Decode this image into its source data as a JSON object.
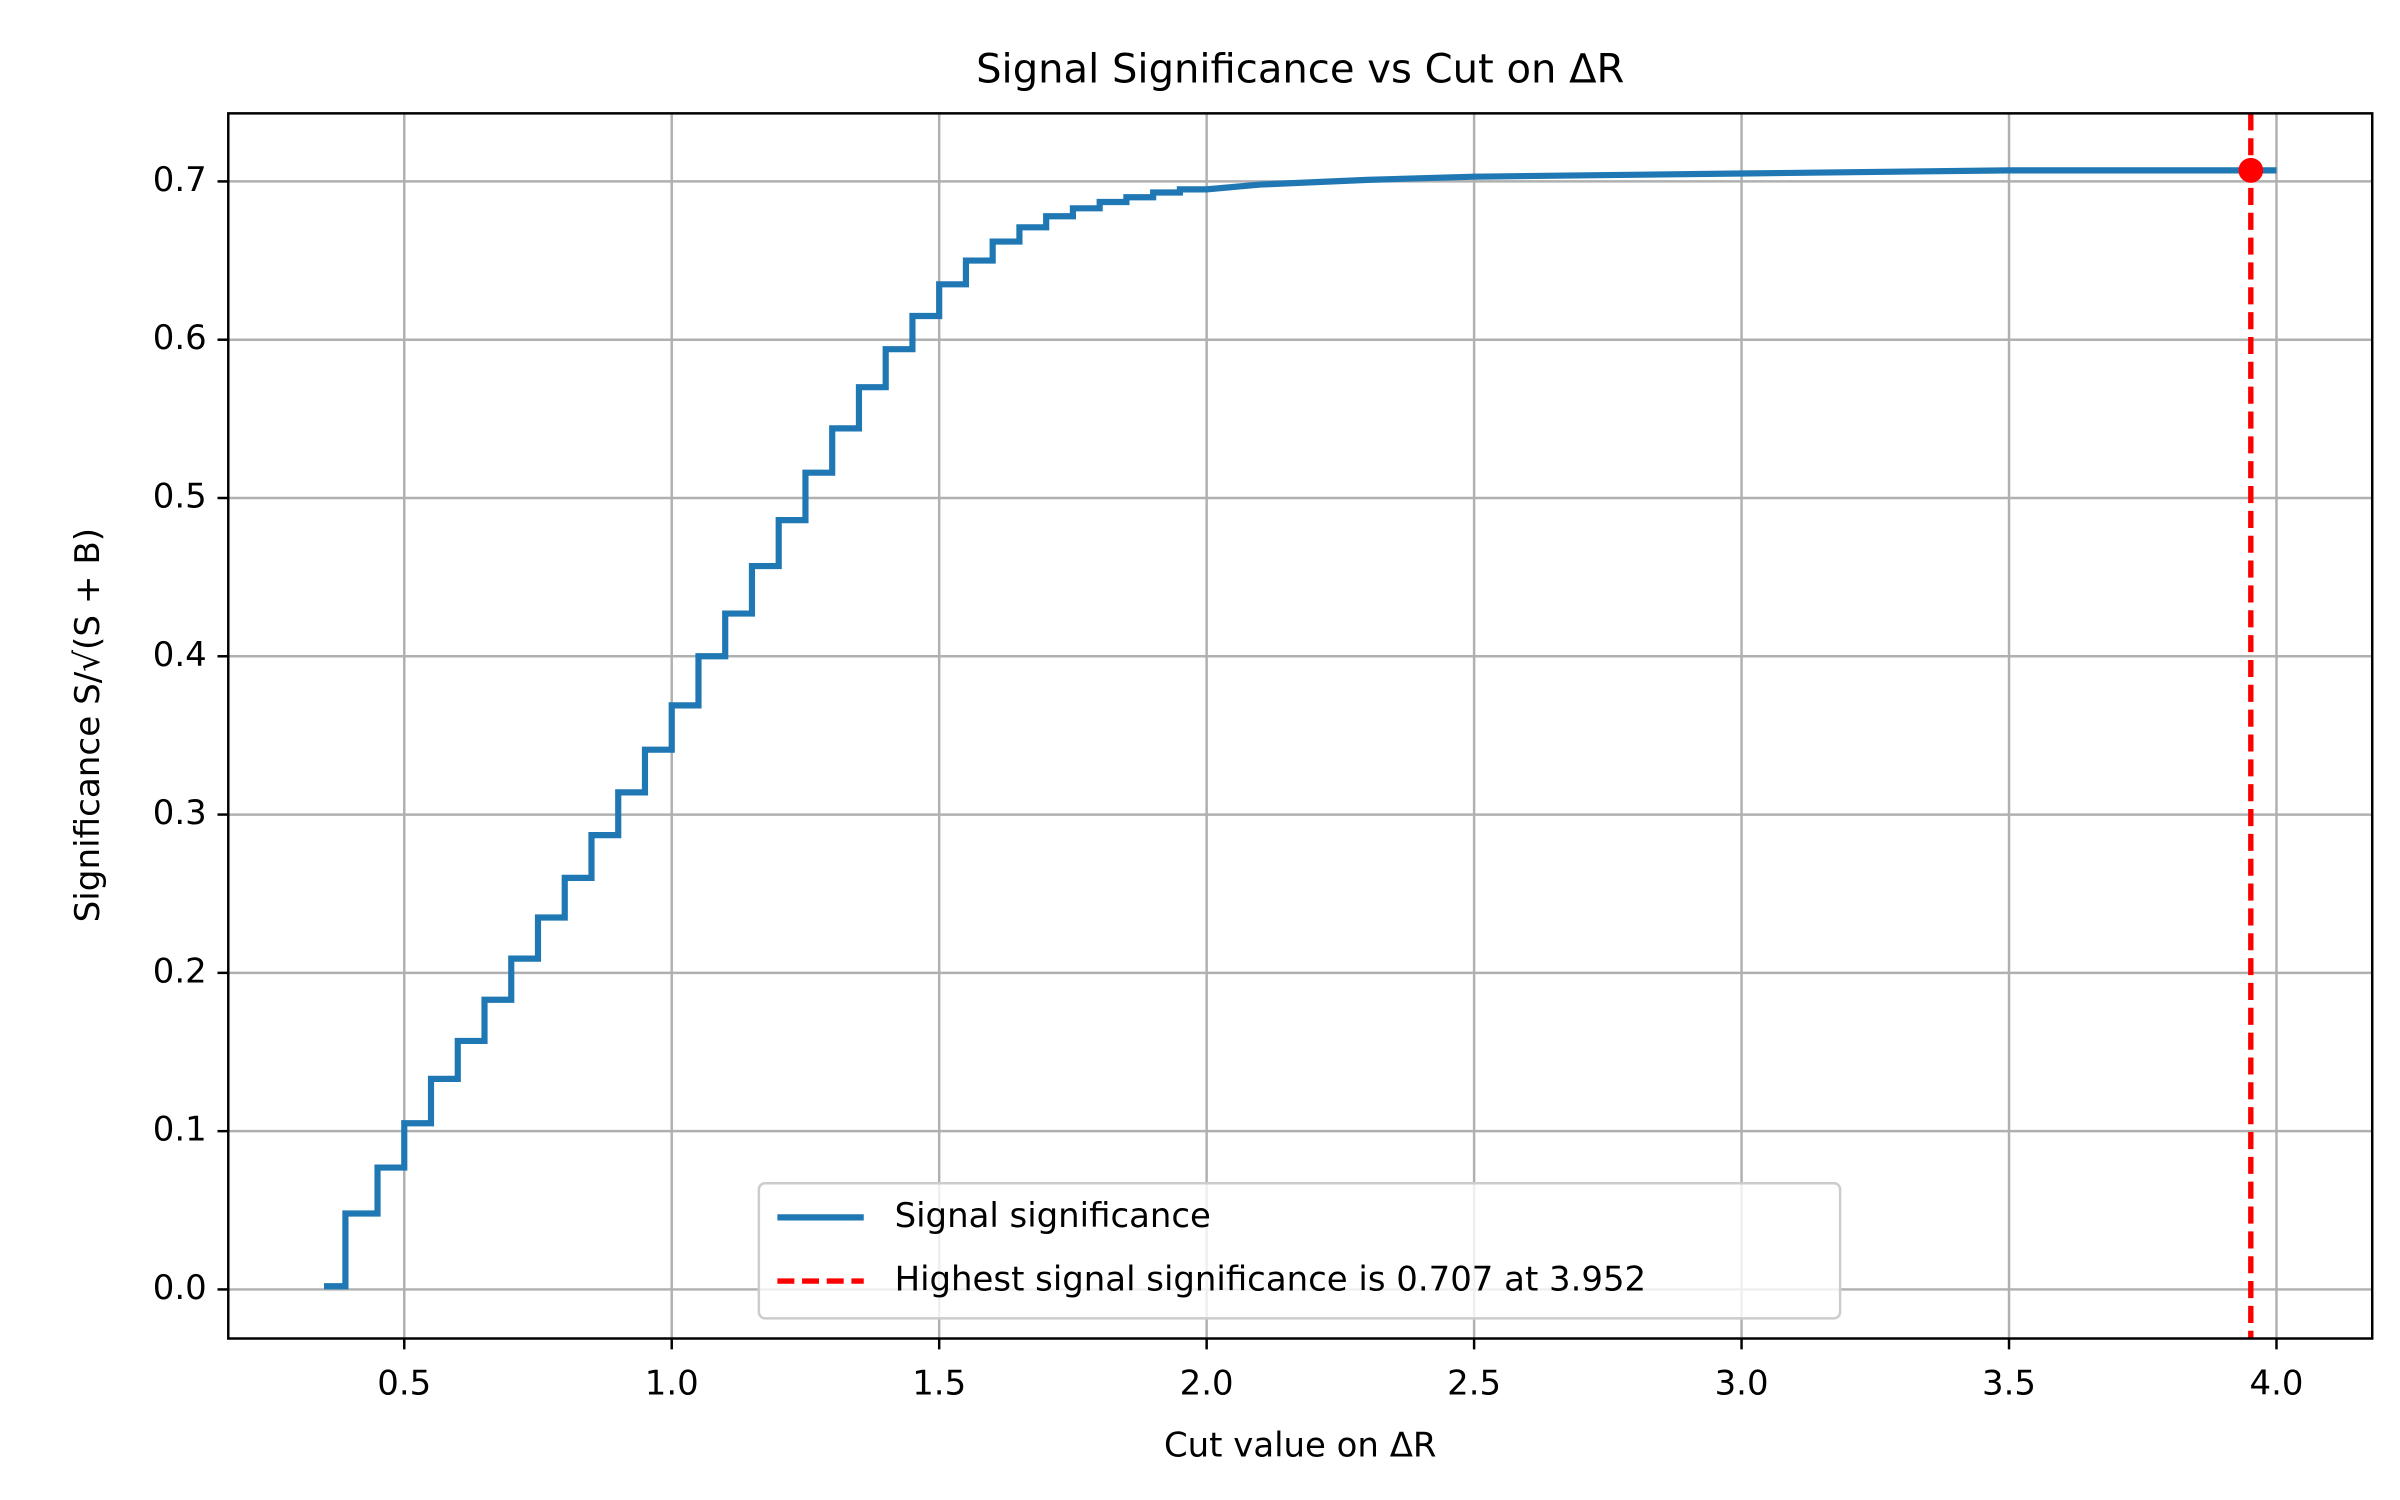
{
  "chart_data": {
    "type": "line",
    "title": "Signal Significance vs Cut on ΔR",
    "x_label": "Cut value on ΔR",
    "y_label": "Significance S/√(S + B)",
    "xlim": [
      0.171,
      4.179
    ],
    "ylim": [
      -0.031,
      0.743
    ],
    "xticks": [
      {
        "value": 0.5,
        "label": "0.5"
      },
      {
        "value": 1,
        "label": "1.0"
      },
      {
        "value": 1.5,
        "label": "1.5"
      },
      {
        "value": 2,
        "label": "2.0"
      },
      {
        "value": 2.5,
        "label": "2.5"
      },
      {
        "value": 3,
        "label": "3.0"
      },
      {
        "value": 3.5,
        "label": "3.5"
      },
      {
        "value": 4,
        "label": "4.0"
      }
    ],
    "yticks": [
      {
        "value": 0,
        "label": "0.0"
      },
      0.1,
      0.2,
      0.3,
      0.4,
      0.5,
      0.6,
      0.7
    ],
    "grid": true,
    "legend": "lower center",
    "series": [
      {
        "name": "Signal significance",
        "color": "#1f77b4",
        "x": [
          0.35,
          0.39,
          0.39,
          0.45,
          0.45,
          0.5,
          0.5,
          0.55,
          0.55,
          0.6,
          0.6,
          0.65,
          0.65,
          0.7,
          0.7,
          0.75,
          0.75,
          0.8,
          0.8,
          0.85,
          0.85,
          0.9,
          0.9,
          0.95,
          0.95,
          1.0,
          1.0,
          1.05,
          1.05,
          1.1,
          1.1,
          1.15,
          1.15,
          1.2,
          1.2,
          1.25,
          1.25,
          1.3,
          1.3,
          1.35,
          1.35,
          1.4,
          1.4,
          1.45,
          1.45,
          1.5,
          1.5,
          1.55,
          1.55,
          1.6,
          1.6,
          1.65,
          1.65,
          1.7,
          1.7,
          1.75,
          1.75,
          1.8,
          1.8,
          1.85,
          1.85,
          1.9,
          1.9,
          1.95,
          1.95,
          2.0,
          2.1,
          2.3,
          2.5,
          3.0,
          3.5,
          4.0
        ],
        "values": [
          0.002,
          0.002,
          0.048,
          0.048,
          0.077,
          0.077,
          0.105,
          0.105,
          0.133,
          0.133,
          0.157,
          0.157,
          0.183,
          0.183,
          0.209,
          0.209,
          0.235,
          0.235,
          0.26,
          0.26,
          0.287,
          0.287,
          0.314,
          0.314,
          0.341,
          0.341,
          0.369,
          0.369,
          0.4,
          0.4,
          0.427,
          0.427,
          0.457,
          0.457,
          0.486,
          0.486,
          0.516,
          0.516,
          0.544,
          0.544,
          0.57,
          0.57,
          0.594,
          0.594,
          0.615,
          0.615,
          0.635,
          0.635,
          0.65,
          0.65,
          0.662,
          0.662,
          0.671,
          0.671,
          0.678,
          0.678,
          0.683,
          0.683,
          0.687,
          0.687,
          0.69,
          0.69,
          0.693,
          0.693,
          0.695,
          0.695,
          0.698,
          0.701,
          0.703,
          0.705,
          0.707,
          0.707
        ]
      }
    ],
    "highlight": {
      "name": "Highest signal significance is 0.707 at 3.952",
      "color": "#ff0000",
      "x": 3.952,
      "y": 0.707
    }
  }
}
